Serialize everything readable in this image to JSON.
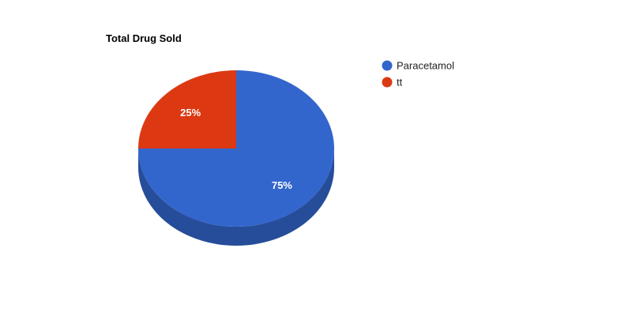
{
  "chart_data": {
    "type": "pie",
    "title": "Total Drug Sold",
    "style": "3d",
    "legend_position": "right",
    "categories": [
      "Paracetamol",
      "tt"
    ],
    "values": [
      75,
      25
    ],
    "labels": [
      "75%",
      "25%"
    ],
    "colors": [
      "#3366cc",
      "#dc3912"
    ],
    "side_colors": [
      "#264d99",
      "#a52b0e"
    ]
  }
}
